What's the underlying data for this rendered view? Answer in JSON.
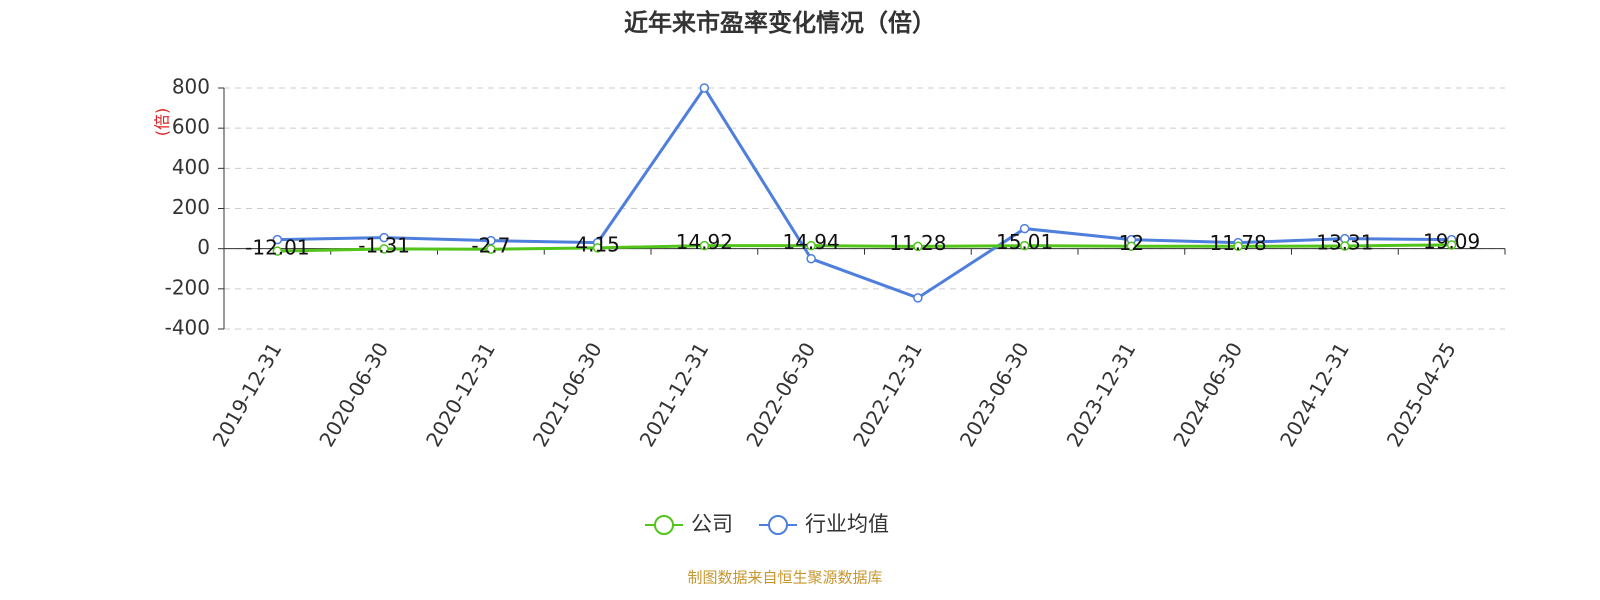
{
  "chart_data": {
    "type": "line",
    "title": "近年来市盈率变化情况（倍）",
    "y_axis_label": "(倍)",
    "source": "制图数据来自恒生聚源数据库",
    "categories": [
      "2019-12-31",
      "2020-06-30",
      "2020-12-31",
      "2021-06-30",
      "2021-12-31",
      "2022-06-30",
      "2022-12-31",
      "2023-06-30",
      "2023-12-31",
      "2024-06-30",
      "2024-12-31",
      "2025-04-25"
    ],
    "series": [
      {
        "name": "公司",
        "color": "#52c41a",
        "values": [
          -12.01,
          -1.31,
          -2.7,
          4.15,
          14.92,
          14.94,
          11.28,
          15.01,
          12,
          11.78,
          13.31,
          19.09
        ],
        "show_labels": true
      },
      {
        "name": "行业均值",
        "color": "#4e7fdc",
        "values": [
          45,
          55,
          40,
          30,
          800,
          -50,
          -245,
          100,
          45,
          30,
          50,
          45
        ],
        "show_labels": false
      }
    ],
    "ylim": [
      -400,
      800
    ],
    "yticks": [
      -400,
      -200,
      0,
      200,
      400,
      600,
      800
    ],
    "grid": true
  }
}
